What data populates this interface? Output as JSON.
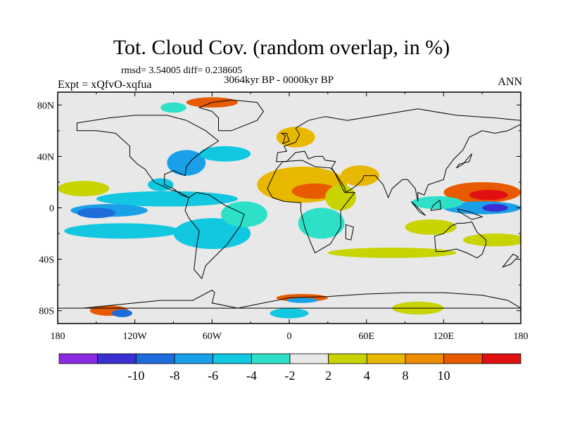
{
  "figure": {
    "title": "Tot. Cloud Cov. (random overlap, in %)",
    "stats": "rmsd= 3.54005 diff= 0.238605",
    "period": "3064kyr BP - 0000kyr BP",
    "experiment": "Expt = xQfvO-xqfua",
    "season": "ANN"
  },
  "map": {
    "projection": "cylindrical-equidistant",
    "lon_range": [
      -180,
      180
    ],
    "lat_range": [
      -90,
      90
    ],
    "lon_ticks": [
      "180",
      "120W",
      "60W",
      "0",
      "60E",
      "120E",
      "180"
    ],
    "lat_ticks": [
      "80N",
      "40N",
      "0",
      "40S",
      "80S"
    ],
    "background_color": "#e8e8e8"
  },
  "colorbar": {
    "colors": [
      "#8a2be2",
      "#3a2fd0",
      "#1e6cdc",
      "#1aa0e8",
      "#12c8e0",
      "#2ee0c8",
      "#e8e8e8",
      "#c8d400",
      "#e8b800",
      "#ec8c00",
      "#e85a00",
      "#e01010"
    ],
    "labels": [
      "-10",
      "-8",
      "-6",
      "-4",
      "-2",
      "2",
      "4",
      "8",
      "10"
    ]
  },
  "anomalies": [
    {
      "lon": -95,
      "lat": 7,
      "rx": 55,
      "ry": 6,
      "level": "-4"
    },
    {
      "lon": -140,
      "lat": -2,
      "rx": 30,
      "ry": 5,
      "level": "-6"
    },
    {
      "lon": -150,
      "lat": -4,
      "rx": 15,
      "ry": 4,
      "level": "-8"
    },
    {
      "lon": -130,
      "lat": -18,
      "rx": 45,
      "ry": 6,
      "level": "-4"
    },
    {
      "lon": -60,
      "lat": -20,
      "rx": 30,
      "ry": 12,
      "level": "-4"
    },
    {
      "lon": -35,
      "lat": -5,
      "rx": 18,
      "ry": 10,
      "level": "-2"
    },
    {
      "lon": -80,
      "lat": 35,
      "rx": 15,
      "ry": 10,
      "level": "-6"
    },
    {
      "lon": -50,
      "lat": 42,
      "rx": 20,
      "ry": 6,
      "level": "-4"
    },
    {
      "lon": -100,
      "lat": 18,
      "rx": 10,
      "ry": 5,
      "level": "-4"
    },
    {
      "lon": 10,
      "lat": 18,
      "rx": 35,
      "ry": 14,
      "level": "4"
    },
    {
      "lon": 20,
      "lat": 13,
      "rx": 18,
      "ry": 6,
      "level": "8"
    },
    {
      "lon": 55,
      "lat": 25,
      "rx": 15,
      "ry": 8,
      "level": "4"
    },
    {
      "lon": 5,
      "lat": 55,
      "rx": 15,
      "ry": 8,
      "level": "4"
    },
    {
      "lon": 25,
      "lat": -12,
      "rx": 18,
      "ry": 12,
      "level": "-2"
    },
    {
      "lon": 40,
      "lat": 8,
      "rx": 12,
      "ry": 10,
      "level": "2"
    },
    {
      "lon": 150,
      "lat": 12,
      "rx": 30,
      "ry": 8,
      "level": "8"
    },
    {
      "lon": 155,
      "lat": 10,
      "rx": 15,
      "ry": 4,
      "level": "10"
    },
    {
      "lon": 150,
      "lat": 0,
      "rx": 30,
      "ry": 5,
      "level": "-6"
    },
    {
      "lon": 160,
      "lat": 0,
      "rx": 10,
      "ry": 3,
      "level": "-10"
    },
    {
      "lon": 115,
      "lat": 4,
      "rx": 20,
      "ry": 5,
      "level": "-2"
    },
    {
      "lon": 110,
      "lat": -15,
      "rx": 20,
      "ry": 6,
      "level": "2"
    },
    {
      "lon": 80,
      "lat": -35,
      "rx": 50,
      "ry": 4,
      "level": "2"
    },
    {
      "lon": 160,
      "lat": -25,
      "rx": 25,
      "ry": 5,
      "level": "2"
    },
    {
      "lon": -160,
      "lat": 15,
      "rx": 20,
      "ry": 6,
      "level": "2"
    },
    {
      "lon": -60,
      "lat": 82,
      "rx": 20,
      "ry": 4,
      "level": "8"
    },
    {
      "lon": -90,
      "lat": 78,
      "rx": 10,
      "ry": 4,
      "level": "-2"
    },
    {
      "lon": 10,
      "lat": -70,
      "rx": 20,
      "ry": 3,
      "level": "8"
    },
    {
      "lon": 10,
      "lat": -72,
      "rx": 12,
      "ry": 2,
      "level": "-6"
    },
    {
      "lon": -140,
      "lat": -80,
      "rx": 15,
      "ry": 4,
      "level": "8"
    },
    {
      "lon": -130,
      "lat": -82,
      "rx": 8,
      "ry": 3,
      "level": "-8"
    },
    {
      "lon": 100,
      "lat": -78,
      "rx": 20,
      "ry": 5,
      "level": "2"
    },
    {
      "lon": 0,
      "lat": -82,
      "rx": 15,
      "ry": 4,
      "level": "-4"
    }
  ]
}
